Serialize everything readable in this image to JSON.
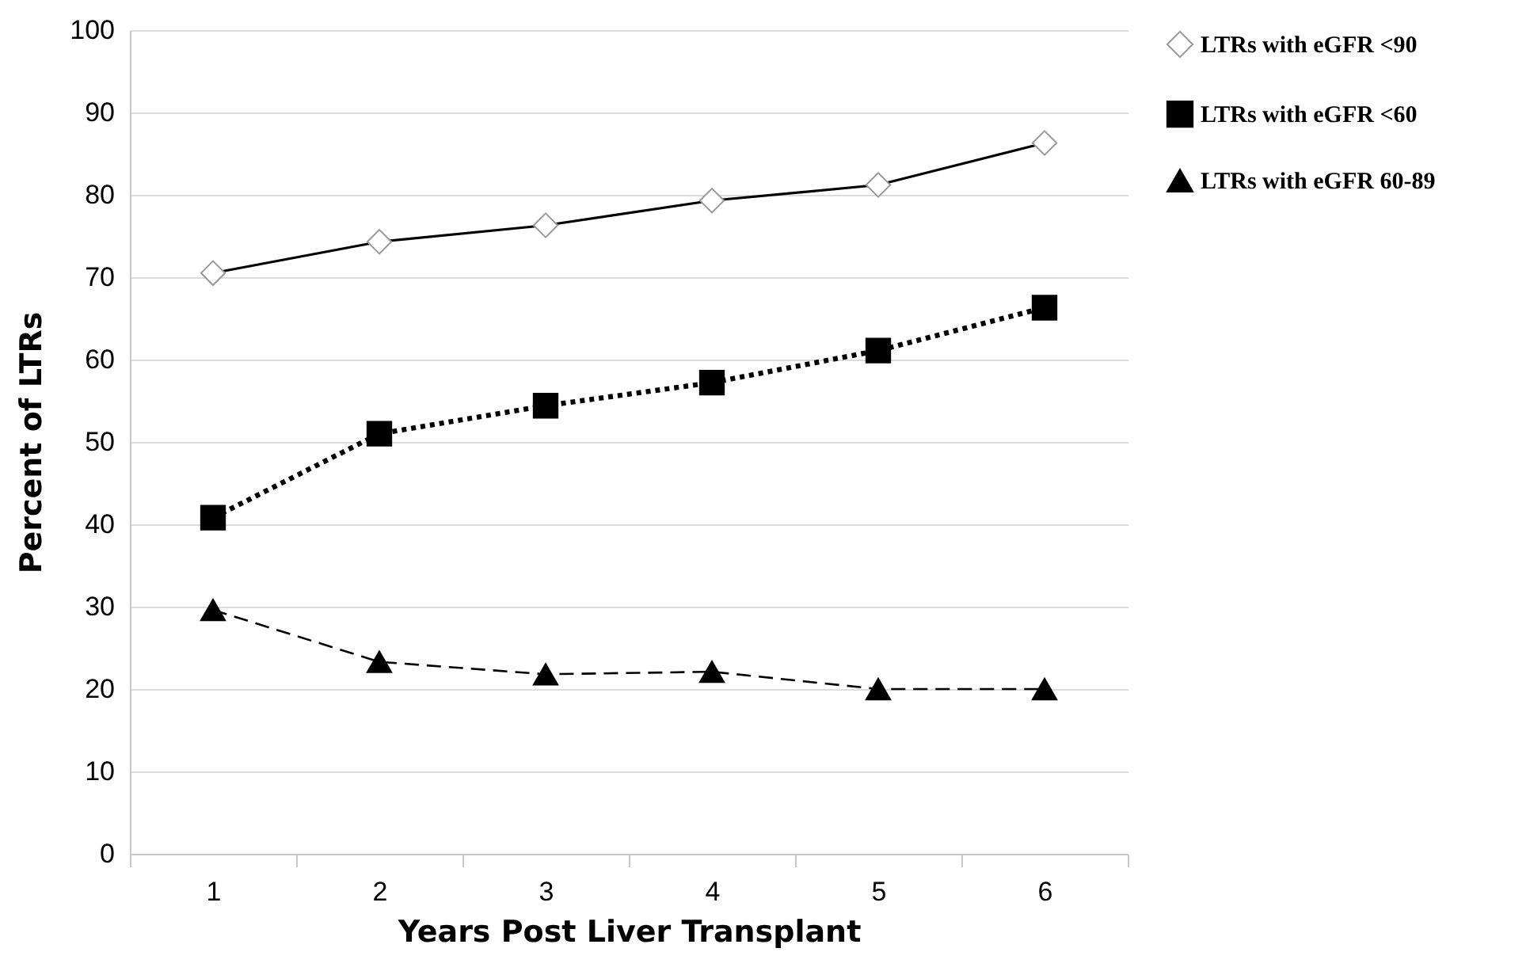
{
  "chart_data": {
    "type": "line",
    "xlabel": "Years Post Liver Transplant",
    "ylabel": "Percent of LTRs",
    "categories": [
      "1",
      "2",
      "3",
      "4",
      "5",
      "6"
    ],
    "series": [
      {
        "name": "LTRs with eGFR <90",
        "color": "#000000",
        "marker": "diamond",
        "line_style": "solid",
        "values": [
          70.5,
          74.3,
          76.3,
          79.3,
          81.2,
          86.3
        ]
      },
      {
        "name": "LTRs with eGFR <60",
        "color": "#000000",
        "marker": "square",
        "line_style": "dotted",
        "values": [
          40.8,
          51,
          54.4,
          57.2,
          61.1,
          66.3
        ]
      },
      {
        "name": "LTRs with eGFR 60-89",
        "color": "#000000",
        "marker": "triangle",
        "line_style": "dashed",
        "values": [
          29.6,
          23.3,
          21.8,
          22.1,
          20,
          20
        ]
      }
    ],
    "ylim": [
      0,
      100
    ],
    "yticks": [
      0,
      10,
      20,
      30,
      40,
      50,
      60,
      70,
      80,
      90,
      100
    ],
    "grid": "y",
    "legend": "right"
  }
}
